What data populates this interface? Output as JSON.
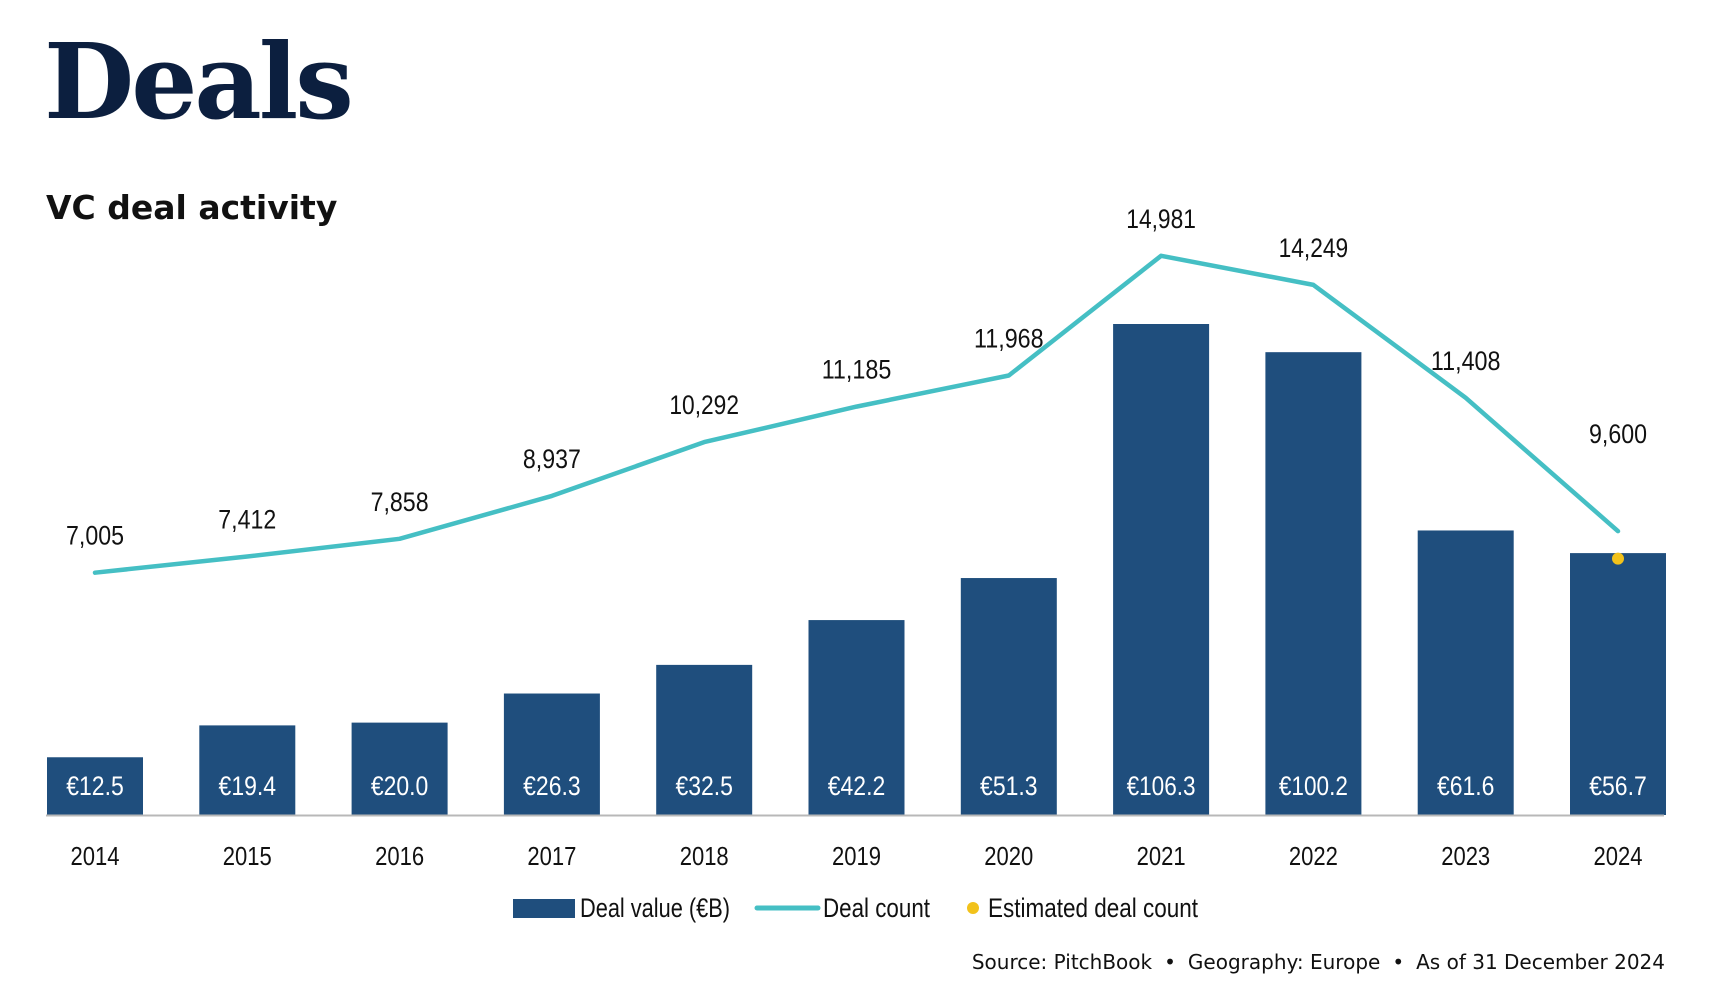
{
  "page": {
    "title": "Deals",
    "subtitle": "VC deal activity"
  },
  "footer": {
    "source": "Source: PitchBook",
    "geography": "Geography: Europe",
    "as_of": "As of 31 December 2024",
    "separator": "•"
  },
  "colors": {
    "bar": "#1f4e7d",
    "line": "#45bfc4",
    "estimate": "#f2c21b",
    "title": "#0c1f3f"
  },
  "chart_data": {
    "type": "bar",
    "categories": [
      "2014",
      "2015",
      "2016",
      "2017",
      "2018",
      "2019",
      "2020",
      "2021",
      "2022",
      "2023",
      "2024"
    ],
    "series": [
      {
        "name": "Deal value (€B)",
        "type": "bar",
        "values": [
          12.5,
          19.4,
          20.0,
          26.3,
          32.5,
          42.2,
          51.3,
          106.3,
          100.2,
          61.6,
          56.7
        ],
        "labels": [
          "€12.5",
          "€19.4",
          "€20.0",
          "€26.3",
          "€32.5",
          "€42.2",
          "€51.3",
          "€106.3",
          "€100.2",
          "€61.6",
          "€56.7"
        ]
      },
      {
        "name": "Deal count",
        "type": "line",
        "values": [
          7005,
          7412,
          7858,
          8937,
          10292,
          11185,
          11968,
          14981,
          14249,
          11408,
          8050
        ],
        "labels": [
          "7,005",
          "7,412",
          "7,858",
          "8,937",
          "10,292",
          "11,185",
          "11,968",
          "14,981",
          "14,249",
          "11,408",
          ""
        ]
      },
      {
        "name": "Estimated deal count",
        "type": "scatter",
        "category": "2024",
        "value": 9600,
        "label": "9,600"
      }
    ],
    "legend": [
      "Deal value (€B)",
      "Deal count",
      "Estimated deal count"
    ],
    "legend_position": "bottom",
    "grid": false
  }
}
